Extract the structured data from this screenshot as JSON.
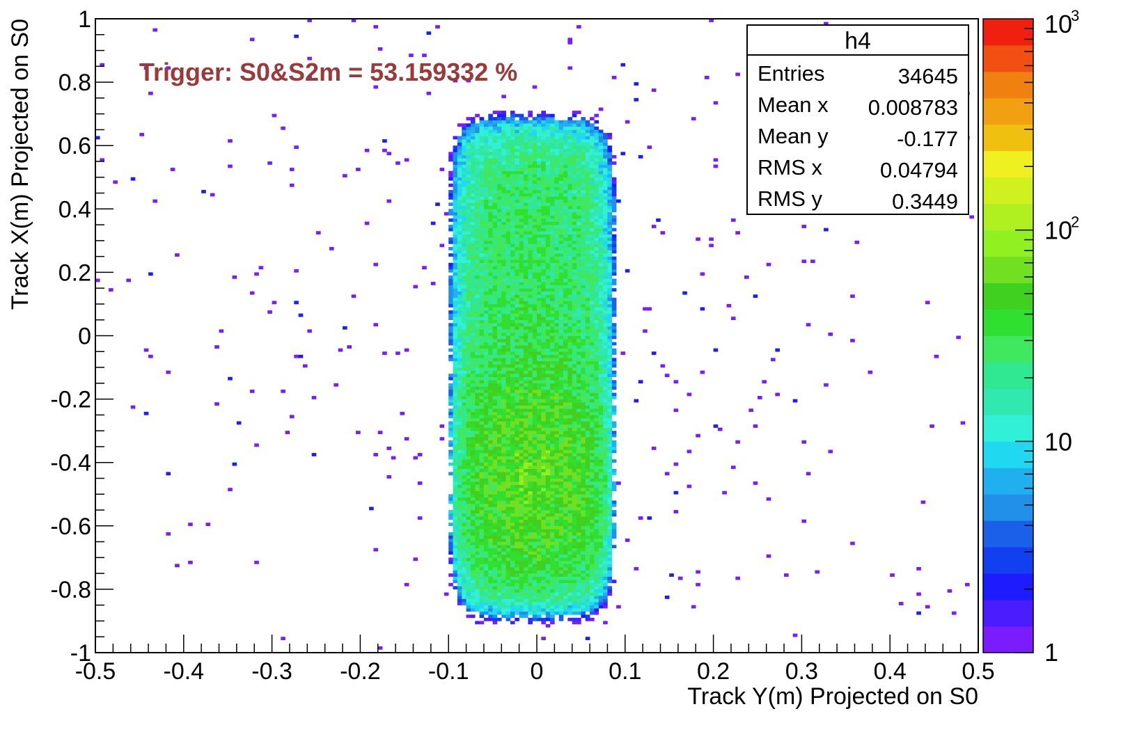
{
  "chart_data": {
    "type": "heatmap",
    "histogram_name": "h4",
    "xlabel": "Track Y(m) Projected on S0",
    "ylabel": "Track X(m) Projected on S0",
    "xlim": [
      -0.5,
      0.5
    ],
    "ylim": [
      -1,
      1
    ],
    "x_tick_labels": [
      {
        "value": -0.5,
        "label": "-0.5"
      },
      {
        "value": -0.4,
        "label": "-0.4"
      },
      {
        "value": -0.3,
        "label": "-0.3"
      },
      {
        "value": -0.2,
        "label": "-0.2"
      },
      {
        "value": -0.1,
        "label": "-0.1"
      },
      {
        "value": 0,
        "label": "0"
      },
      {
        "value": 0.1,
        "label": "0.1"
      },
      {
        "value": 0.2,
        "label": "0.2"
      },
      {
        "value": 0.3,
        "label": "0.3"
      },
      {
        "value": 0.4,
        "label": "0.4"
      },
      {
        "value": 0.5,
        "label": "0.5"
      }
    ],
    "y_tick_labels": [
      {
        "value": 1,
        "label": "1"
      },
      {
        "value": 0.8,
        "label": "0.8"
      },
      {
        "value": 0.6,
        "label": "0.6"
      },
      {
        "value": 0.4,
        "label": "0.4"
      },
      {
        "value": 0.2,
        "label": "0.2"
      },
      {
        "value": 0,
        "label": "0"
      },
      {
        "value": -0.2,
        "label": "-0.2"
      },
      {
        "value": -0.4,
        "label": "-0.4"
      },
      {
        "value": -0.6,
        "label": "-0.6"
      },
      {
        "value": -0.8,
        "label": "-0.8"
      },
      {
        "value": -1,
        "label": "-1"
      }
    ],
    "annotation": "Trigger: S0&S2m = 53.159332 %",
    "annotation_color": "#9b3a3a",
    "stats_box": {
      "title": "h4",
      "rows": [
        {
          "label": "Entries",
          "value": "34645"
        },
        {
          "label": "Mean x",
          "value": "0.008783"
        },
        {
          "label": "Mean y",
          "value": "-0.177"
        },
        {
          "label": "RMS x",
          "value": "0.04794"
        },
        {
          "label": "RMS y",
          "value": "0.3449"
        }
      ]
    },
    "color_scale": {
      "log": true,
      "min": 1,
      "max": 1000,
      "labels": [
        {
          "value": 1,
          "base": "1",
          "exp": ""
        },
        {
          "value": 10,
          "base": "10",
          "exp": ""
        },
        {
          "value": 100,
          "base": "10",
          "exp": "2"
        },
        {
          "value": 1000,
          "base": "10",
          "exp": "3"
        }
      ],
      "colors": [
        "#7a1cff",
        "#4a1dff",
        "#1c1cff",
        "#1240f0",
        "#1a60e8",
        "#2090e8",
        "#20b0f0",
        "#20d8f0",
        "#30f0d8",
        "#30e8b0",
        "#30e890",
        "#40e860",
        "#30e030",
        "#40d020",
        "#70e020",
        "#90f020",
        "#b0f020",
        "#d0f020",
        "#f0f020",
        "#f0c010",
        "#f0a010",
        "#f08010",
        "#f05010",
        "#f02010"
      ]
    },
    "distribution": {
      "total_entries": 34645,
      "mean_x": 0.008783,
      "mean_y": -0.177,
      "rms_x": 0.04794,
      "rms_y": 0.3449,
      "dense_region_x": [
        -0.1,
        0.09
      ],
      "dense_region_y": [
        -0.9,
        0.7
      ],
      "max_bin_content": 100
    }
  }
}
